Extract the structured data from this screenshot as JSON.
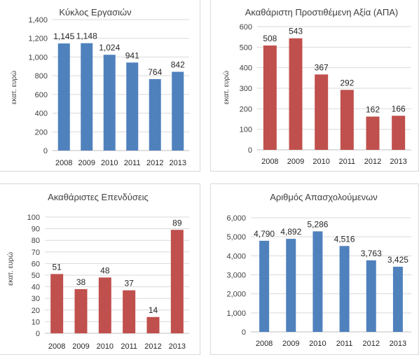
{
  "chart_data": [
    {
      "type": "bar",
      "title": "Κύκλος Εργασιών",
      "ylabel": "εκατ.  ευρώ",
      "categories": [
        "2008",
        "2009",
        "2010",
        "2011",
        "2012",
        "2013"
      ],
      "values": [
        1145,
        1148,
        1024,
        941,
        764,
        842
      ],
      "value_labels": [
        "1,145",
        "1,148",
        "1,024",
        "941",
        "764",
        "842"
      ],
      "ylim": [
        0,
        1400
      ],
      "y_ticks": [
        0,
        200,
        400,
        600,
        800,
        1000,
        1200,
        1400
      ],
      "y_tick_labels": [
        "0",
        "200",
        "400",
        "600",
        "800",
        "1,000",
        "1,200",
        "1,400"
      ],
      "grid": true,
      "bar_color": "#4f81bd"
    },
    {
      "type": "bar",
      "title": "Ακαθάριστη Προστιθέμενη Αξία (ΑΠΑ)",
      "ylabel": "εκατ. ευρώ",
      "categories": [
        "2008",
        "2009",
        "2010",
        "2011",
        "2012",
        "2013"
      ],
      "values": [
        508,
        543,
        367,
        292,
        162,
        166
      ],
      "value_labels": [
        "508",
        "543",
        "367",
        "292",
        "162",
        "166"
      ],
      "ylim": [
        0,
        600
      ],
      "y_ticks": [
        0,
        100,
        200,
        300,
        400,
        500,
        600
      ],
      "y_tick_labels": [
        "0",
        "100",
        "200",
        "300",
        "400",
        "500",
        "600"
      ],
      "grid": true,
      "bar_color": "#c0504d"
    },
    {
      "type": "bar",
      "title": "Ακαθάριστες Επενδύσεις",
      "ylabel": "εκατ.  ευρώ",
      "categories": [
        "2008",
        "2009",
        "2010",
        "2011",
        "2012",
        "2013"
      ],
      "values": [
        51,
        38,
        48,
        37,
        14,
        89
      ],
      "value_labels": [
        "51",
        "38",
        "48",
        "37",
        "14",
        "89"
      ],
      "ylim": [
        0,
        100
      ],
      "y_ticks": [
        0,
        10,
        20,
        30,
        40,
        50,
        60,
        70,
        80,
        90,
        100
      ],
      "y_tick_labels": [
        "0",
        "10",
        "20",
        "30",
        "40",
        "50",
        "60",
        "70",
        "80",
        "90",
        "100"
      ],
      "grid": true,
      "bar_color": "#c0504d"
    },
    {
      "type": "bar",
      "title": "Αριθμός Απασχολούμενων",
      "ylabel": "",
      "categories": [
        "2008",
        "2009",
        "2010",
        "2011",
        "2012",
        "2013"
      ],
      "values": [
        4790,
        4892,
        5286,
        4516,
        3763,
        3425
      ],
      "value_labels": [
        "4,790",
        "4,892",
        "5,286",
        "4,516",
        "3,763",
        "3,425"
      ],
      "ylim": [
        0,
        6000
      ],
      "y_ticks": [
        0,
        1000,
        2000,
        3000,
        4000,
        5000,
        6000
      ],
      "y_tick_labels": [
        "0",
        "1,000",
        "2,000",
        "3,000",
        "4,000",
        "5,000",
        "6,000"
      ],
      "grid": true,
      "bar_color": "#4f81bd"
    }
  ]
}
